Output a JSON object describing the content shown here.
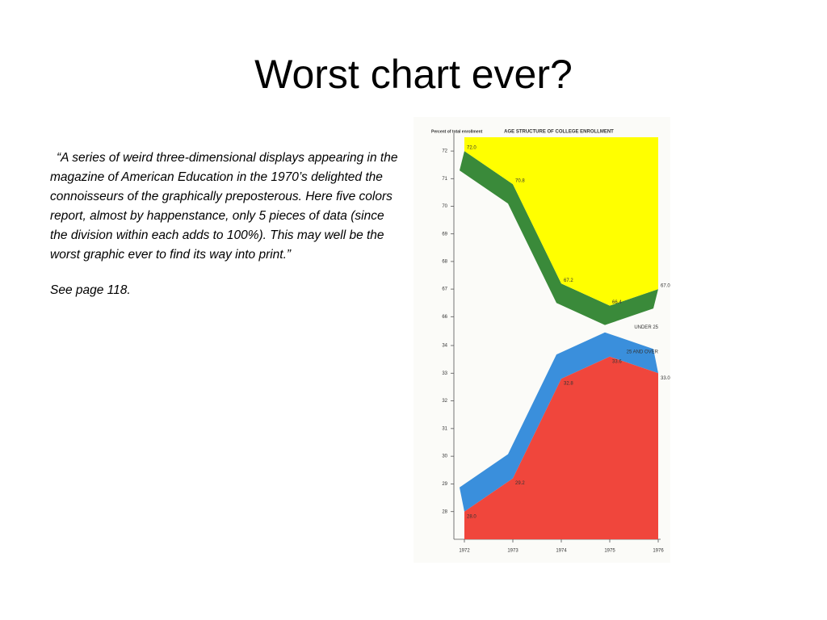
{
  "title": "Worst chart ever?",
  "body": {
    "paragraphs": [
      "“A series of weird three-dimensional displays appearing in the magazine of American Education in the 1970’s delighted the connoisseurs of the graphically preposterous.  Here five colors report, almost by happenstance, only 5 pieces of data (since the division within each adds to 100%).  This may well be the worst graphic ever to find its way into print.”",
      "See page 118."
    ]
  },
  "chart_data": [
    {
      "type": "area",
      "title": "AGE STRUCTURE OF COLLEGE ENROLLMENT",
      "y_label": "Percent of total enrollment",
      "x": [
        1972,
        1973,
        1974,
        1975,
        1976
      ],
      "xlim": [
        1972,
        1976
      ],
      "series": [
        {
          "name": "UNDER 25",
          "color": "#ffff00",
          "side_color": "#3a8a3a",
          "values": [
            72,
            70.8,
            67.2,
            66.4,
            67
          ],
          "value_labels": [
            "72.0",
            "70.8",
            "67.2",
            "66.4",
            "67.0"
          ]
        }
      ],
      "ylim": [
        65.5,
        72.5
      ],
      "yticks": [
        66,
        67,
        68,
        69,
        70,
        71,
        72
      ]
    },
    {
      "type": "area",
      "x": [
        1972,
        1973,
        1974,
        1975,
        1976
      ],
      "xlim": [
        1972,
        1976
      ],
      "xticks": [
        1972,
        1973,
        1974,
        1975,
        1976
      ],
      "series": [
        {
          "name": "25 AND OVER",
          "color": "#f0463c",
          "side_color": "#3a8fdc",
          "values": [
            28,
            29.2,
            32.8,
            33.6,
            33
          ],
          "value_labels": [
            "28.0",
            "29.2",
            "32.8",
            "33.6",
            "33.0"
          ]
        }
      ],
      "ylim": [
        27,
        34
      ],
      "yticks": [
        28,
        29,
        30,
        31,
        32,
        33,
        34
      ]
    }
  ]
}
